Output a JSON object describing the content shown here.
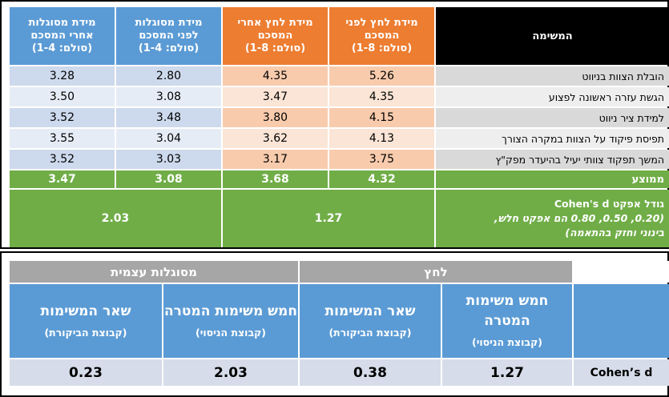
{
  "top_table": {
    "headers": {
      "task": "המשימה",
      "stress_before": [
        "מידת לחץ לפני",
        "המסכם",
        "(סולם: 1-8)"
      ],
      "stress_after": [
        "מידת לחץ אחרי",
        "המסכם",
        "(סולם: 1-8)"
      ],
      "efficacy_before": [
        "מידת מסוגלות",
        "לפני המסכם",
        "(סולם: 1-4)"
      ],
      "efficacy_after": [
        "מידת מסוגלות",
        "אחרי המסכם",
        "(סולם: 1-4)"
      ]
    },
    "rows": [
      {
        "task": "הובלת הצוות בניווט",
        "stress_before": "5.26",
        "stress_after": "4.35",
        "efficacy_before": "2.80",
        "efficacy_after": "3.28"
      },
      {
        "task": "הגשת עזרה ראשונה לפצוע",
        "stress_before": "4.35",
        "stress_after": "3.47",
        "efficacy_before": "3.08",
        "efficacy_after": "3.50"
      },
      {
        "task": "למידת ציר ניווט",
        "stress_before": "4.15",
        "stress_after": "3.80",
        "efficacy_before": "3.48",
        "efficacy_after": "3.52"
      },
      {
        "task": "תפיסת פיקוד על הצוות במקרה הצורך",
        "stress_before": "4.13",
        "stress_after": "3.62",
        "efficacy_before": "3.04",
        "efficacy_after": "3.55"
      },
      {
        "task": "המשך תפקוד צוותי יעיל בהיעדר מפק\"ץ",
        "stress_before": "3.75",
        "stress_after": "3.17",
        "efficacy_before": "3.03",
        "efficacy_after": "3.52"
      }
    ],
    "average": {
      "label": "ממוצע",
      "stress_before": "4.32",
      "stress_after": "3.68",
      "efficacy_before": "3.08",
      "efficacy_after": "3.47"
    },
    "effect": {
      "label_line1": "גודל אפקט Cohen's d",
      "label_line2": "(0.20, 0.50, 0.80 הם אפקט חלש,",
      "label_line3": "בינוני וחזק בהתאמה)",
      "stress": "1.27",
      "efficacy": "2.03"
    },
    "colors": {
      "blue": "#5b9bd5",
      "orange": "#ed7d31",
      "green": "#70ad47",
      "black": "#000000"
    }
  },
  "bottom_table": {
    "groups": {
      "stress": "לחץ",
      "efficacy": "מסוגלות עצמית"
    },
    "columns": {
      "target_stress": {
        "title": "חמש משימות המטרה",
        "sub": "(קבוצת הניסוי)"
      },
      "control_stress": {
        "title": "שאר המשימות",
        "sub": "(קבוצת הביקורת)"
      },
      "target_efficacy": {
        "title": "חמש משימות המטרה",
        "sub": "(קבוצת הניסוי)"
      },
      "control_efficacy": {
        "title": "שאר המשימות",
        "sub": "(קבוצת הביקורת)"
      }
    },
    "row_label": "Cohen’s d",
    "values": {
      "target_stress": "1.27",
      "control_stress": "0.38",
      "target_efficacy": "2.03",
      "control_efficacy": "0.23"
    },
    "colors": {
      "header": "#5b9bd5",
      "group": "#a6a6a6",
      "values": "#d6dce9"
    }
  }
}
